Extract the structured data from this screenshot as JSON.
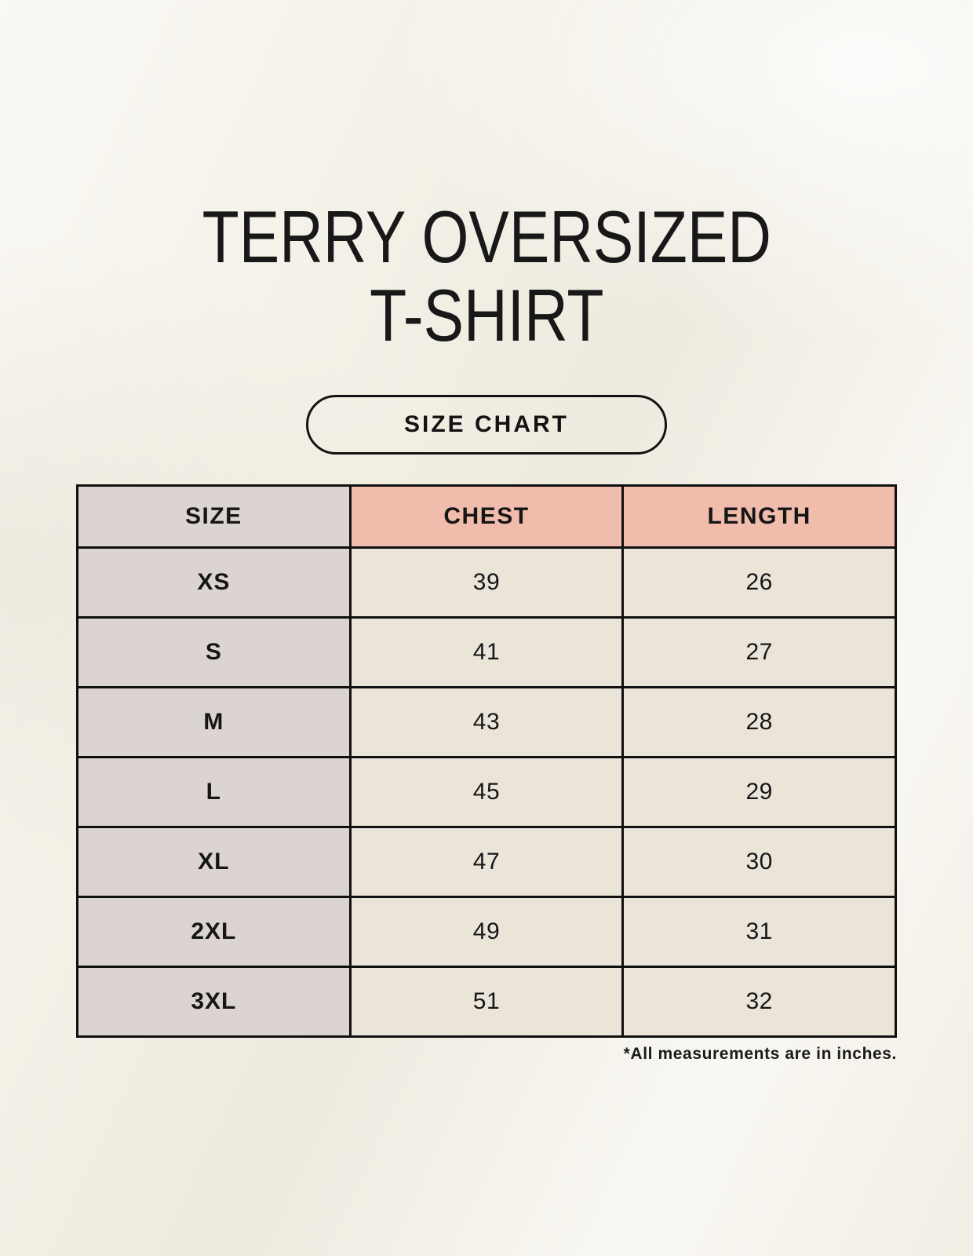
{
  "page": {
    "title_line1": "TERRY OVERSIZED",
    "title_line2": "T-SHIRT",
    "size_chart_button_label": "SIZE CHART",
    "footnote": "*All measurements are in inches."
  },
  "colors": {
    "background": "#f4f1e8",
    "header_accent_pink": "#f0bcac",
    "size_column_gray": "#dbd4d0",
    "data_cell_cream": "#eae4d9",
    "table_border": "#101010",
    "text": "#161616"
  },
  "chart_data": {
    "type": "table",
    "title": "SIZE CHART",
    "columns": [
      "SIZE",
      "CHEST",
      "LENGTH"
    ],
    "rows": [
      [
        "XS",
        "39",
        "26"
      ],
      [
        "S",
        "41",
        "27"
      ],
      [
        "M",
        "43",
        "28"
      ],
      [
        "L",
        "45",
        "29"
      ],
      [
        "XL",
        "47",
        "30"
      ],
      [
        "2XL",
        "49",
        "31"
      ],
      [
        "3XL",
        "51",
        "32"
      ]
    ],
    "note": "*All measurements are in inches."
  }
}
